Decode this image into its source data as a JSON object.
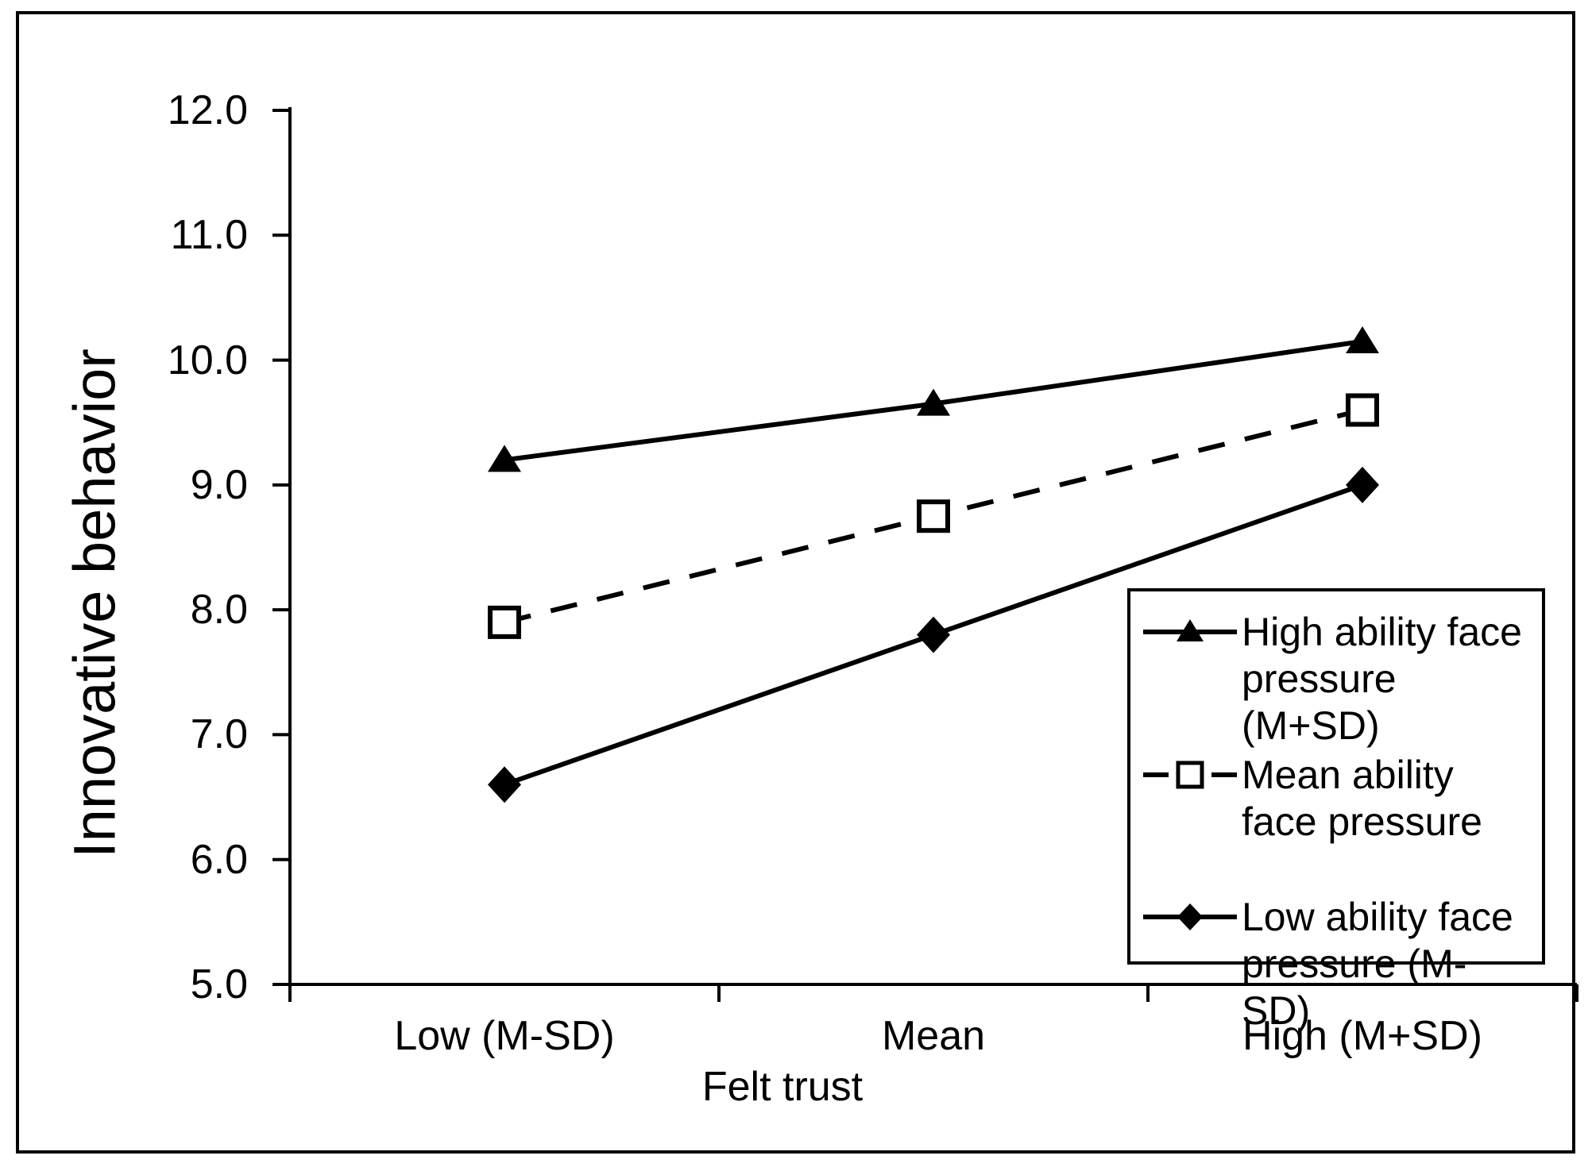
{
  "figure": {
    "background": "#ffffff",
    "ink_color": "#000000"
  },
  "chart_data": {
    "type": "line",
    "title": "",
    "xlabel": "Felt trust",
    "ylabel": "Innovative behavior",
    "categories": [
      "Low (M-SD)",
      "Mean",
      "High (M+SD)"
    ],
    "series": [
      {
        "name": "High ability face pressure (M+SD)",
        "marker": "triangle-filled",
        "line_style": "solid",
        "values": [
          9.2,
          9.65,
          10.15
        ]
      },
      {
        "name": "Mean ability face pressure",
        "marker": "square-open",
        "line_style": "dashed",
        "values": [
          7.9,
          8.75,
          9.6
        ]
      },
      {
        "name": "Low ability face pressure (M-SD)",
        "marker": "diamond-filled",
        "line_style": "solid",
        "values": [
          6.6,
          7.8,
          9.0
        ]
      }
    ],
    "ylim": [
      5.0,
      12.0
    ],
    "y_ticks": [
      "5.0",
      "6.0",
      "7.0",
      "8.0",
      "9.0",
      "10.0",
      "11.0",
      "12.0"
    ],
    "grid": false,
    "legend_position": "right-middle"
  }
}
